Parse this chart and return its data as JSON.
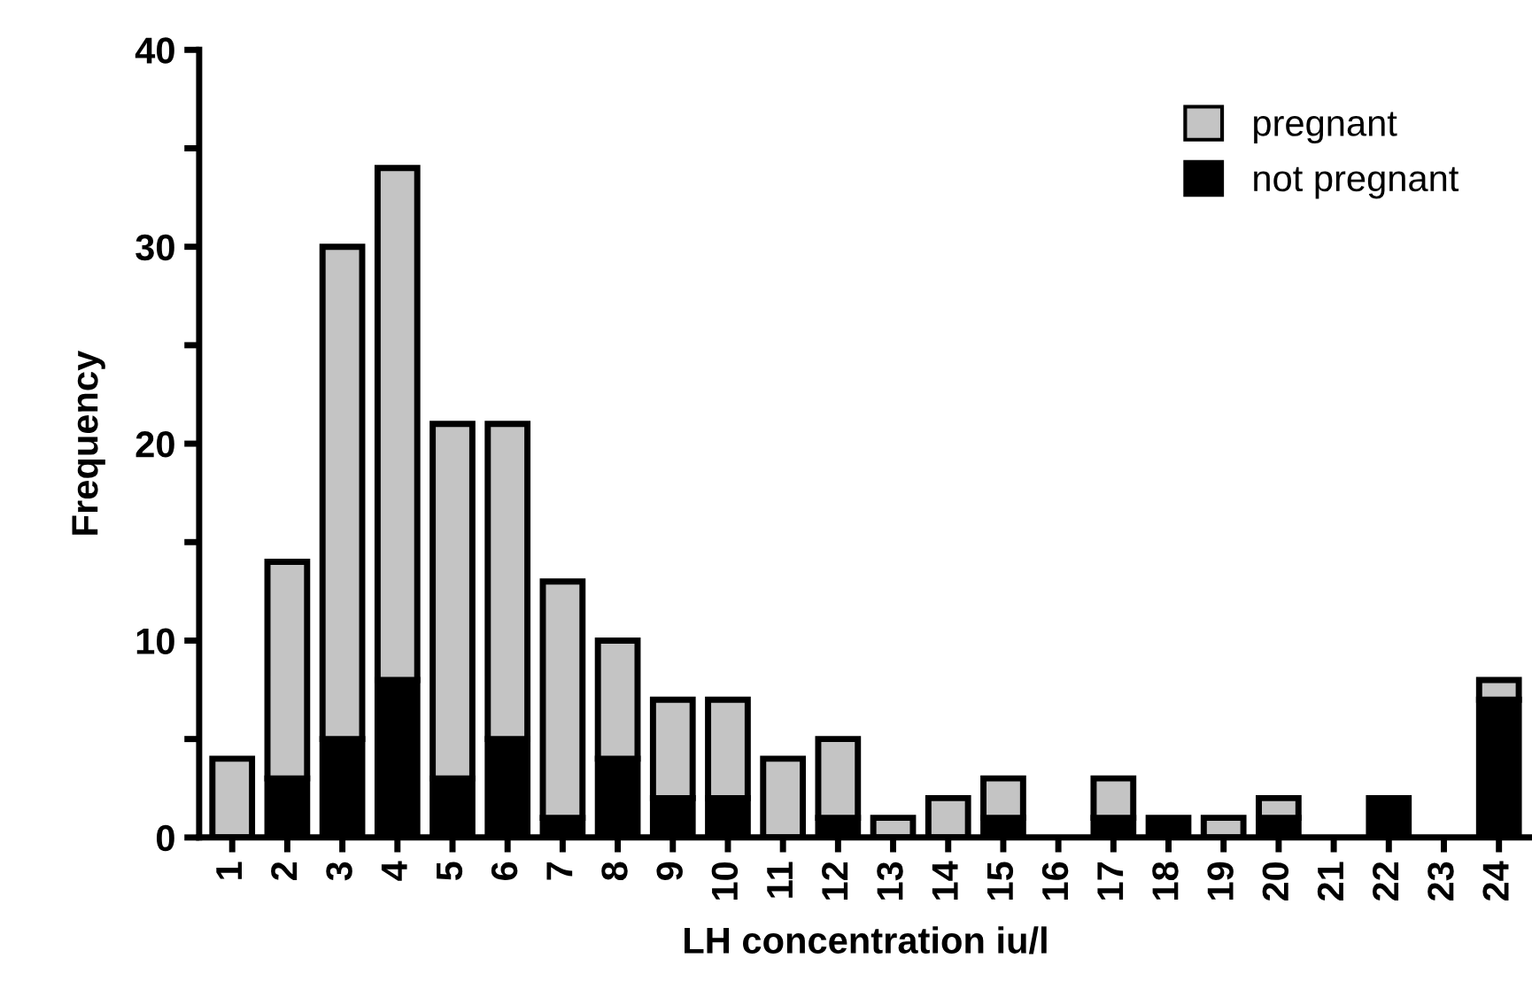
{
  "chart_data": {
    "type": "bar",
    "stacked": true,
    "xlabel": "LH concentration iu/l",
    "ylabel": "Frequency",
    "categories": [
      "1",
      "2",
      "3",
      "4",
      "5",
      "6",
      "7",
      "8",
      "9",
      "10",
      "11",
      "12",
      "13",
      "14",
      "15",
      "16",
      "17",
      "18",
      "19",
      "20",
      "21",
      "22",
      "23",
      "24"
    ],
    "series": [
      {
        "name": "not pregnant",
        "color": "#000000",
        "values": [
          0,
          3,
          5,
          8,
          3,
          5,
          1,
          4,
          2,
          2,
          0,
          1,
          0,
          0,
          1,
          0,
          1,
          1,
          0,
          1,
          0,
          2,
          0,
          7
        ]
      },
      {
        "name": "pregnant",
        "color": "#c4c4c4",
        "values": [
          4,
          11,
          25,
          26,
          18,
          16,
          12,
          6,
          5,
          5,
          4,
          4,
          1,
          2,
          2,
          0,
          2,
          0,
          1,
          1,
          0,
          0,
          0,
          1
        ]
      }
    ],
    "ylim": [
      0,
      40
    ],
    "yticks": [
      0,
      {
        "value": 5,
        "label": null
      },
      10,
      {
        "value": 15,
        "label": null
      },
      20,
      {
        "value": 25,
        "label": null
      },
      30,
      {
        "value": 35,
        "label": null
      },
      40
    ],
    "legend": "top right",
    "grid": false
  }
}
